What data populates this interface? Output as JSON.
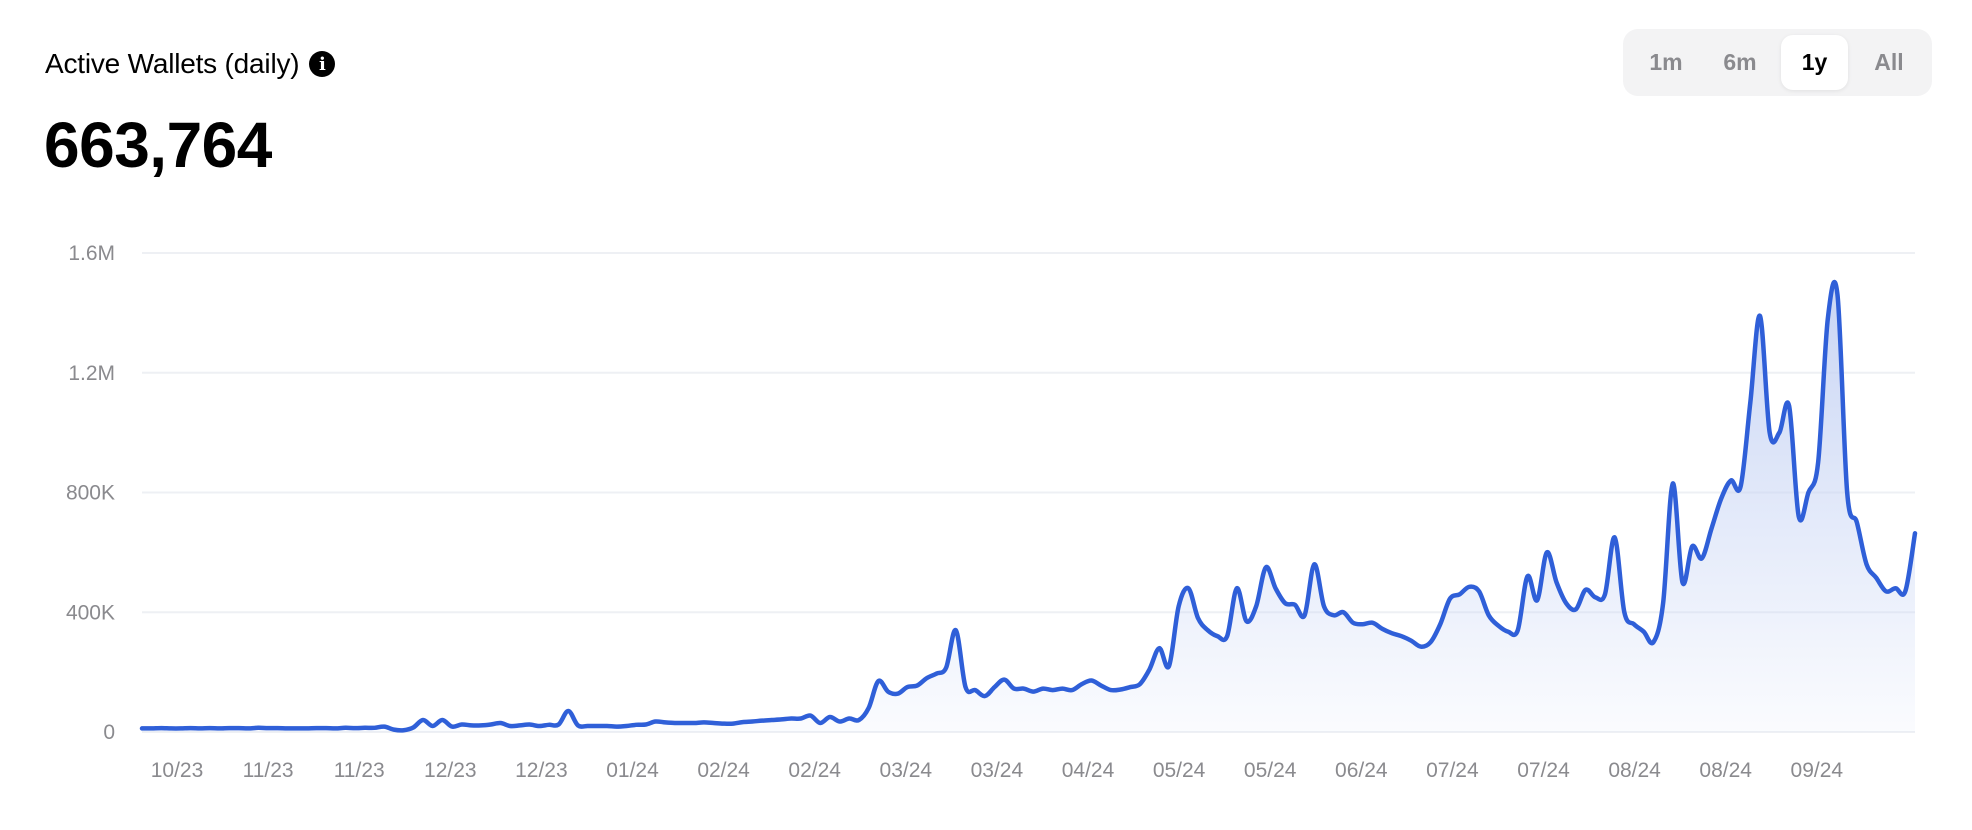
{
  "header": {
    "title": "Active Wallets (daily)",
    "info_icon": "info-icon",
    "value": "663,764"
  },
  "range_selector": {
    "options": [
      "1m",
      "6m",
      "1y",
      "All"
    ],
    "selected": "1y"
  },
  "chart_data": {
    "type": "area",
    "title": "Active Wallets (daily)",
    "xlabel": "",
    "ylabel": "",
    "ylim": [
      0,
      1600000
    ],
    "yticks": [
      0,
      400000,
      800000,
      1200000,
      1600000
    ],
    "ytick_labels": [
      "0",
      "400K",
      "800K",
      "1.2M",
      "1.6M"
    ],
    "xtick_labels": [
      "10/23",
      "11/23",
      "11/23",
      "12/23",
      "12/23",
      "01/24",
      "02/24",
      "02/24",
      "03/24",
      "03/24",
      "04/24",
      "05/24",
      "05/24",
      "06/24",
      "07/24",
      "07/24",
      "08/24",
      "08/24",
      "09/24"
    ],
    "grid": true,
    "legend": "none",
    "line_color": "#2f5fd8",
    "fill_color": "#c7d4f4",
    "series": [
      {
        "values": [
          12000,
          12000,
          13000,
          12000,
          12000,
          13000,
          12000,
          13000,
          12000,
          13000,
          13000,
          12000,
          14000,
          13000,
          13000,
          12000,
          12000,
          12000,
          13000,
          13000,
          12000,
          14000,
          13000,
          14000,
          14000,
          18000,
          8000,
          6000,
          15000,
          40000,
          20000,
          40000,
          18000,
          25000,
          22000,
          22000,
          25000,
          30000,
          20000,
          22000,
          25000,
          20000,
          24000,
          25000,
          70000,
          22000,
          20000,
          20000,
          20000,
          18000,
          20000,
          24000,
          25000,
          35000,
          32000,
          30000,
          30000,
          30000,
          32000,
          30000,
          28000,
          28000,
          33000,
          35000,
          38000,
          40000,
          42000,
          45000,
          45000,
          55000,
          30000,
          50000,
          35000,
          45000,
          40000,
          80000,
          170000,
          135000,
          128000,
          150000,
          155000,
          180000,
          195000,
          215000,
          340000,
          150000,
          140000,
          120000,
          150000,
          175000,
          145000,
          145000,
          135000,
          145000,
          140000,
          145000,
          140000,
          160000,
          172000,
          155000,
          140000,
          142000,
          150000,
          160000,
          210000,
          280000,
          220000,
          420000,
          480000,
          380000,
          340000,
          320000,
          320000,
          480000,
          370000,
          420000,
          550000,
          480000,
          430000,
          425000,
          390000,
          560000,
          420000,
          390000,
          400000,
          365000,
          360000,
          365000,
          345000,
          330000,
          320000,
          305000,
          285000,
          300000,
          360000,
          445000,
          460000,
          485000,
          470000,
          390000,
          355000,
          335000,
          340000,
          520000,
          440000,
          600000,
          500000,
          430000,
          410000,
          475000,
          450000,
          460000,
          650000,
          400000,
          360000,
          335000,
          300000,
          430000,
          830000,
          500000,
          620000,
          580000,
          680000,
          780000,
          840000,
          820000,
          1100000,
          1390000,
          1000000,
          1000000,
          1090000,
          720000,
          800000,
          900000,
          1380000,
          1460000,
          800000,
          700000,
          560000,
          515000,
          470000,
          480000,
          470000,
          663764
        ]
      }
    ]
  }
}
